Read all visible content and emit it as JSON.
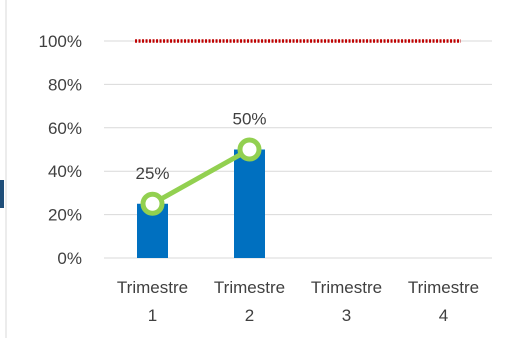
{
  "chart_data": {
    "type": "bar",
    "categories": [
      [
        "Trimestre",
        "1"
      ],
      [
        "Trimestre",
        "2"
      ],
      [
        "Trimestre",
        "3"
      ],
      [
        "Trimestre",
        "4"
      ]
    ],
    "ylim": [
      0,
      100
    ],
    "y_ticks": [
      "0%",
      "20%",
      "40%",
      "60%",
      "80%",
      "100%"
    ],
    "y_tick_values": [
      0,
      20,
      40,
      60,
      80,
      100
    ],
    "grid": true,
    "series": [
      {
        "kind": "bar",
        "color": "#0070C0",
        "values": [
          25,
          50,
          null,
          null
        ]
      },
      {
        "kind": "line",
        "color": "#92D050",
        "values": [
          25,
          50,
          null,
          null
        ],
        "data_labels": [
          "25%",
          "50%",
          "",
          ""
        ]
      },
      {
        "kind": "line",
        "style": "dotted",
        "color": "#C00000",
        "values": [
          100,
          100,
          100,
          100
        ]
      }
    ]
  }
}
